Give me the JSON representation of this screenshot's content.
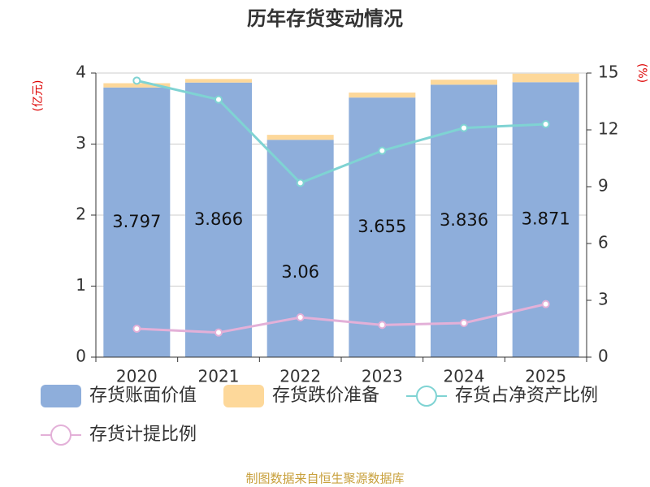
{
  "chart_data": {
    "type": "bar_line",
    "title": "历年存货变动情况",
    "y_label": "(亿元)",
    "y2_label": "(%)",
    "source": "制图数据来自恒生聚源数据库",
    "categories": [
      "2020",
      "2021",
      "2022",
      "2023",
      "2024",
      "2025"
    ],
    "ylim": [
      0,
      4
    ],
    "yticks": [
      0,
      1,
      2,
      3,
      4
    ],
    "y2lim": [
      0,
      15
    ],
    "y2ticks": [
      0,
      3,
      6,
      9,
      12,
      15
    ],
    "grid": true,
    "series": [
      {
        "name": "存货账面价值",
        "kind": "bar",
        "color": "#8eaedb",
        "values": [
          3.797,
          3.866,
          3.06,
          3.655,
          3.836,
          3.871
        ]
      },
      {
        "name": "存货跌价准备",
        "kind": "bar",
        "color": "#fdd89a",
        "values": [
          0.06,
          0.05,
          0.07,
          0.07,
          0.07,
          0.12
        ]
      },
      {
        "name": "存货占净资产比例",
        "kind": "line",
        "axis": "y2",
        "color": "#7fd3d3",
        "values": [
          14.6,
          13.6,
          9.2,
          10.9,
          12.1,
          12.3
        ]
      },
      {
        "name": "存货计提比例",
        "kind": "line",
        "axis": "y2",
        "color": "#e3b0d8",
        "values": [
          1.5,
          1.3,
          2.1,
          1.7,
          1.8,
          2.8
        ]
      }
    ]
  }
}
